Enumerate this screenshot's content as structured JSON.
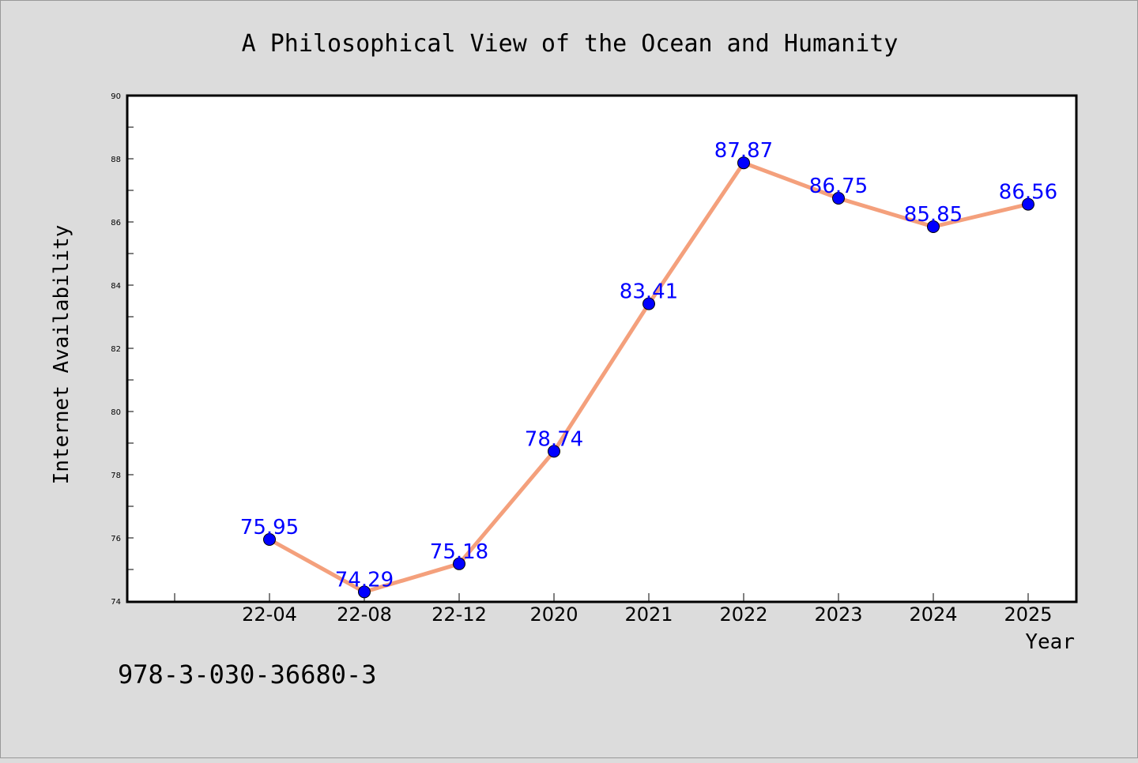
{
  "chart_data": {
    "type": "line",
    "title": "A Philosophical View of the Ocean and Humanity",
    "xlabel": "Year",
    "ylabel": "Internet Availability",
    "categories": [
      "22-04",
      "22-08",
      "22-12",
      "2020",
      "2021",
      "2022",
      "2023",
      "2024",
      "2025"
    ],
    "series": [
      {
        "values": [
          75.95,
          74.29,
          75.18,
          78.74,
          83.41,
          87.87,
          86.75,
          85.85,
          86.56
        ],
        "line_color": "#f4a07c",
        "marker_color": "#0000ff",
        "label_color": "#0000ff"
      }
    ],
    "data_labels": [
      "75.95",
      "74.29",
      "75.18",
      "78.74",
      "83.41",
      "87.87",
      "86.75",
      "85.85",
      "86.56"
    ],
    "ylim": [
      74,
      90
    ],
    "yticks": [
      74,
      76,
      78,
      80,
      82,
      84,
      86,
      88,
      90
    ],
    "ytick_labels": [
      "74",
      "76",
      "78",
      "80",
      "82",
      "84",
      "86",
      "88",
      "90"
    ],
    "grid": false,
    "legend": "none"
  },
  "footer": {
    "isbn": "978-3-030-36680-3"
  },
  "colors": {
    "background": "#dcdcdc",
    "plot_area": "#ffffff"
  }
}
